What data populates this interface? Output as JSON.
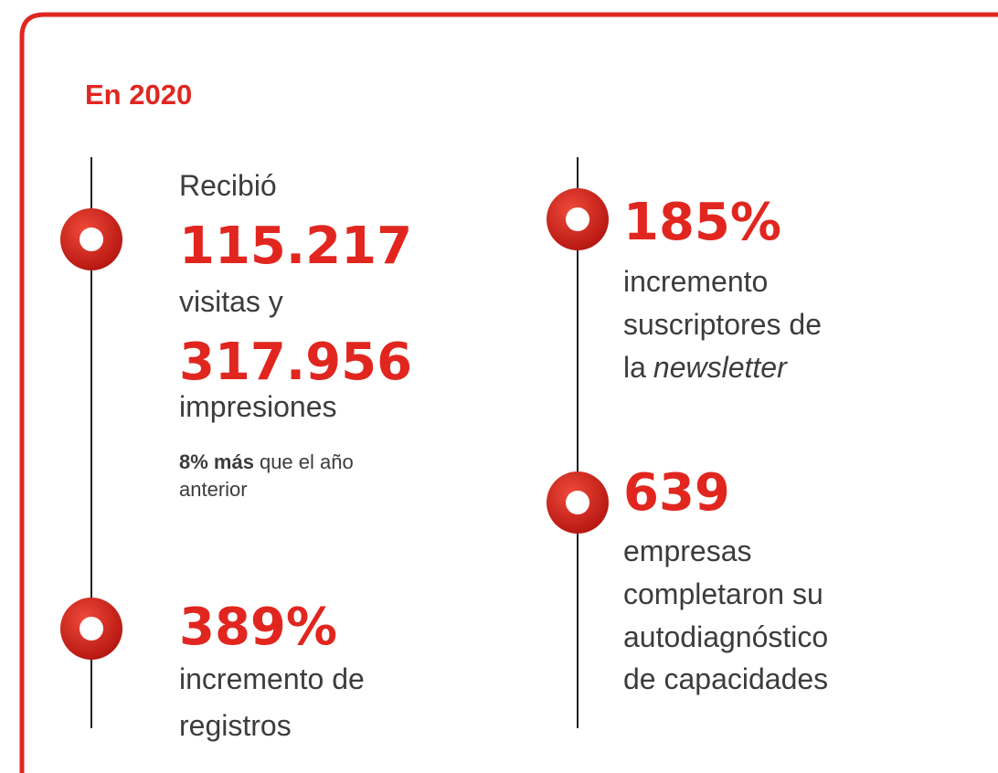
{
  "title": "En 2020",
  "visits": {
    "intro": "Recibió",
    "value": "115.217",
    "label": "visitas y"
  },
  "impressions": {
    "value": "317.956",
    "label": "impresiones",
    "growth": "8% más",
    "growth_text": [
      "que el año",
      "anterior"
    ]
  },
  "registrations": {
    "value": "389%",
    "label": [
      "incremento de",
      "registros"
    ]
  },
  "subscribers": {
    "value": "185%",
    "label": [
      "incremento",
      "suscriptores de"
    ],
    "label_prefix": "la",
    "label_italic": "newsletter"
  },
  "companies": {
    "value": "639",
    "label": [
      "empresas",
      "completaron su",
      "autodiagnóstico",
      "de capacidades"
    ]
  }
}
